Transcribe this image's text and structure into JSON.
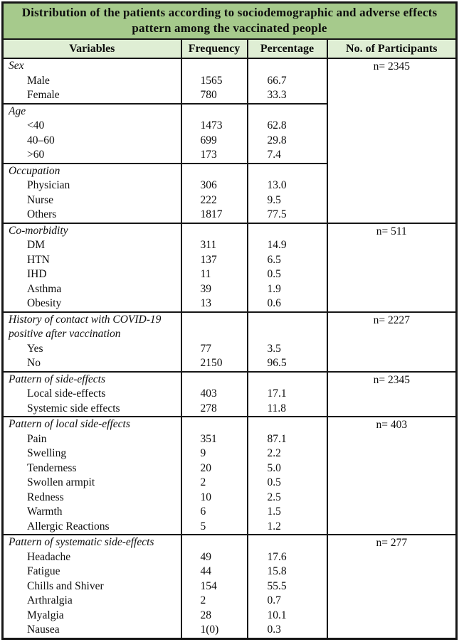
{
  "title": "Distribution of the patients according to sociodemographic and adverse effects pattern among the vaccinated people",
  "columns": [
    "Variables",
    "Frequency",
    "Percentage",
    "No. of Participants"
  ],
  "colors": {
    "title_bg": "#a6ca8c",
    "header_bg": "#dfeed4",
    "border": "#161616"
  },
  "chart_data": {
    "type": "table",
    "title": "Distribution of the patients according to sociodemographic and adverse effects pattern among the vaccinated people",
    "columns": [
      "Variables",
      "Frequency",
      "Percentage",
      "No. of Participants"
    ]
  },
  "groups": [
    {
      "participants": "n= 2345",
      "sections": [
        {
          "label": "Sex",
          "rows": [
            [
              "Male",
              "1565",
              "66.7"
            ],
            [
              "Female",
              "780",
              "33.3"
            ]
          ]
        },
        {
          "label": "Age",
          "rows": [
            [
              "<40",
              "1473",
              "62.8"
            ],
            [
              "40–60",
              "699",
              "29.8"
            ],
            [
              ">60",
              "173",
              "7.4"
            ]
          ]
        },
        {
          "label": "Occupation",
          "rows": [
            [
              "Physician",
              "306",
              "13.0"
            ],
            [
              "Nurse",
              "222",
              "9.5"
            ],
            [
              "Others",
              "1817",
              "77.5"
            ]
          ]
        }
      ]
    },
    {
      "participants": "n= 511",
      "sections": [
        {
          "label": "Co-morbidity",
          "rows": [
            [
              "DM",
              "311",
              "14.9"
            ],
            [
              "HTN",
              "137",
              "6.5"
            ],
            [
              "IHD",
              "11",
              "0.5"
            ],
            [
              "Asthma",
              "39",
              "1.9"
            ],
            [
              "Obesity",
              "13",
              "0.6"
            ]
          ]
        }
      ]
    },
    {
      "participants": "n= 2227",
      "sections": [
        {
          "label": "History of contact with COVID-19 positive after vaccination",
          "rows": [
            [
              "Yes",
              "77",
              "3.5"
            ],
            [
              "No",
              "2150",
              "96.5"
            ]
          ]
        }
      ]
    },
    {
      "participants": "n= 2345",
      "sections": [
        {
          "label": "Pattern of side-effects",
          "rows": [
            [
              "Local side-effects",
              "403",
              "17.1"
            ],
            [
              "Systemic side effects",
              "278",
              "11.8"
            ]
          ]
        }
      ]
    },
    {
      "participants": "n= 403",
      "sections": [
        {
          "label": "Pattern of local side-effects",
          "rows": [
            [
              "Pain",
              "351",
              "87.1"
            ],
            [
              "Swelling",
              "9",
              "2.2"
            ],
            [
              "Tenderness",
              "20",
              "5.0"
            ],
            [
              "Swollen armpit",
              "2",
              "0.5"
            ],
            [
              "Redness",
              "10",
              "2.5"
            ],
            [
              "Warmth",
              "6",
              "1.5"
            ],
            [
              "Allergic Reactions",
              "5",
              "1.2"
            ]
          ]
        }
      ]
    },
    {
      "participants": "n= 277",
      "sections": [
        {
          "label": "Pattern of systematic side-effects",
          "rows": [
            [
              "Headache",
              "49",
              "17.6"
            ],
            [
              "Fatigue",
              "44",
              "15.8"
            ],
            [
              "Chills and Shiver",
              "154",
              "55.5"
            ],
            [
              "Arthralgia",
              "2",
              "0.7"
            ],
            [
              "Myalgia",
              "28",
              "10.1"
            ],
            [
              "Nausea",
              "1(0)",
              "0.3"
            ]
          ]
        }
      ]
    }
  ]
}
